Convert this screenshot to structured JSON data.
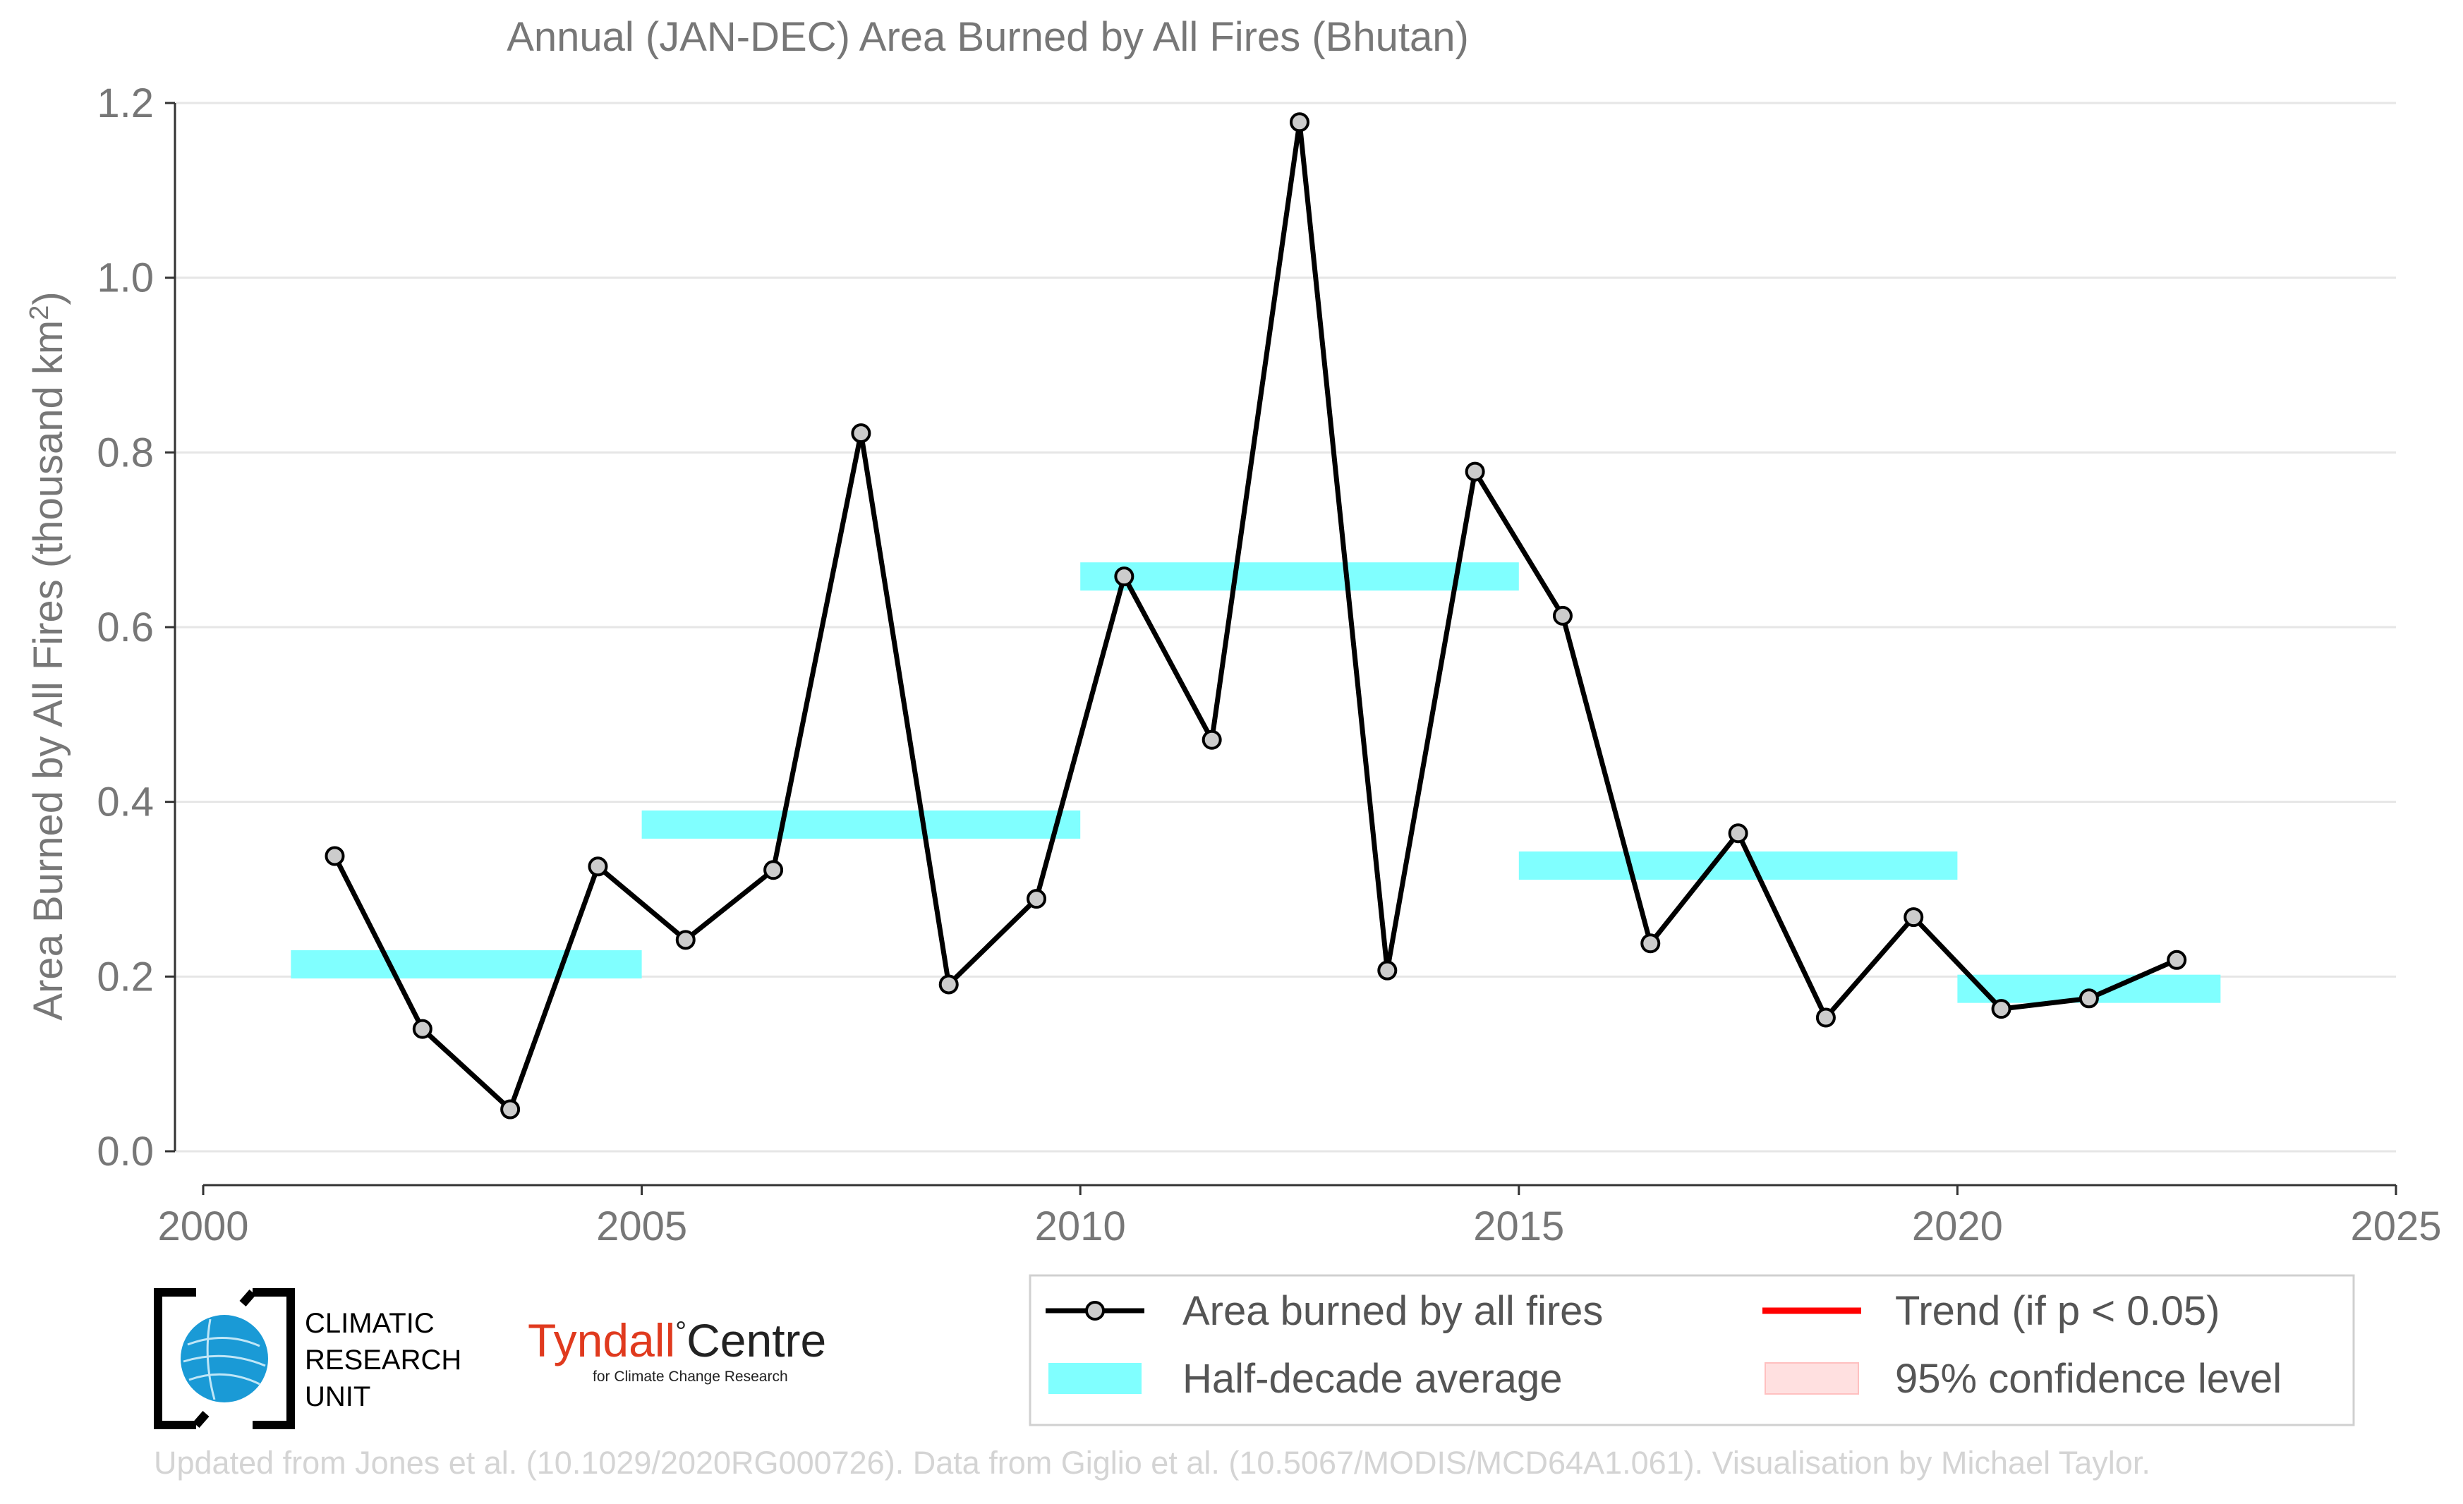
{
  "chart_data": {
    "type": "line",
    "title": "Annual (JAN-DEC) Area Burned by All Fires (Bhutan)",
    "ylabel_main": "Area Burned by All Fires (thousand km",
    "ylabel_sup": "2",
    "ylabel_close": ")",
    "xlim": [
      2000,
      2025
    ],
    "ylim": [
      0.0,
      1.2
    ],
    "xticks": [
      2000,
      2005,
      2010,
      2015,
      2020,
      2025
    ],
    "yticks": [
      "0.0",
      "0.2",
      "0.4",
      "0.6",
      "0.8",
      "1.0",
      "1.2"
    ],
    "ytick_values": [
      0.0,
      0.2,
      0.4,
      0.6,
      0.8,
      1.0,
      1.2
    ],
    "grid": "horizontal",
    "series": [
      {
        "name": "Area burned by all fires",
        "color": "#000000",
        "marker_fill": "#cccccc",
        "x": [
          2001.5,
          2002.5,
          2003.5,
          2004.5,
          2005.5,
          2006.5,
          2007.5,
          2008.5,
          2009.5,
          2010.5,
          2011.5,
          2012.5,
          2013.5,
          2014.5,
          2015.5,
          2016.5,
          2017.5,
          2018.5,
          2019.5,
          2020.5,
          2021.5,
          2022.5
        ],
        "y": [
          0.338,
          0.14,
          0.048,
          0.326,
          0.242,
          0.322,
          0.822,
          0.191,
          0.289,
          0.658,
          0.471,
          1.178,
          0.207,
          0.778,
          0.613,
          0.238,
          0.364,
          0.153,
          0.268,
          0.163,
          0.175,
          0.219
        ]
      }
    ],
    "half_decade_averages": {
      "name": "Half-decade average",
      "color": "#80ffff",
      "segments": [
        {
          "x_start": 2001,
          "x_end": 2005,
          "value": 0.214
        },
        {
          "x_start": 2005,
          "x_end": 2010,
          "value": 0.374
        },
        {
          "x_start": 2010,
          "x_end": 2015,
          "value": 0.658
        },
        {
          "x_start": 2015,
          "x_end": 2020,
          "value": 0.327
        },
        {
          "x_start": 2020,
          "x_end": 2023,
          "value": 0.186
        }
      ]
    },
    "legend": {
      "placement": "bottom-right",
      "entries": [
        {
          "label": "Area burned by all fires",
          "kind": "line-marker",
          "color": "#000000"
        },
        {
          "label": "Trend (if p < 0.05)",
          "kind": "line",
          "color": "#ff0000"
        },
        {
          "label": "Half-decade average",
          "kind": "band",
          "color": "#80ffff"
        },
        {
          "label": "95% confidence level",
          "kind": "band",
          "color": "#ffe0e0"
        }
      ]
    }
  },
  "logos": {
    "cru": [
      "CLIMATIC",
      "RESEARCH",
      "UNIT"
    ],
    "tyndall_main": "Tyndall",
    "tyndall_deg": "°",
    "tyndall_centre": "Centre",
    "tyndall_sub": "for Climate Change Research"
  },
  "credit": "Updated from Jones et al. (10.1029/2020RG000726). Data from Giglio et al. (10.5067/MODIS/MCD64A1.061). Visualisation by Michael Taylor."
}
